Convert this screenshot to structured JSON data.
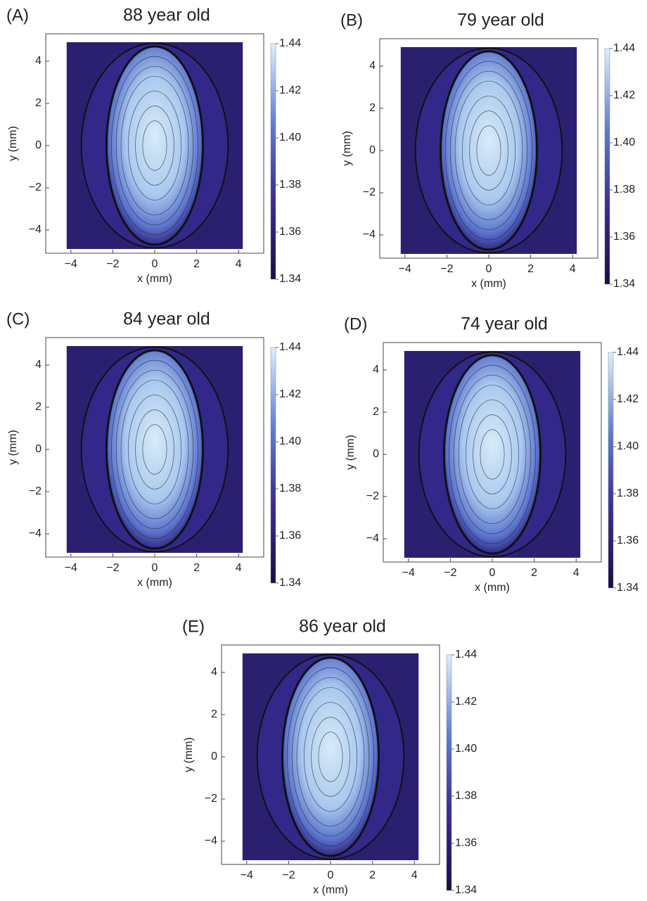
{
  "chart_data": [
    {
      "type": "contour",
      "panel": "(A)",
      "title": "88 year old",
      "xlabel": "x (mm)",
      "ylabel": "y (mm)",
      "xlim": [
        -5.2,
        5.2
      ],
      "ylim": [
        -5.1,
        5.3
      ],
      "xticks": [
        {
          "value": -4,
          "label": "−4"
        },
        {
          "value": -2,
          "label": "−2"
        },
        0,
        2,
        4
      ],
      "yticks": [
        {
          "value": -4,
          "label": "−4"
        },
        {
          "value": -2,
          "label": "−2"
        },
        0,
        2,
        4
      ],
      "clim": [
        1.34,
        1.44
      ],
      "cticks": [
        1.34,
        1.36,
        1.38,
        {
          "value": 1.4,
          "label": "1.40"
        },
        1.42,
        1.44
      ]
    },
    {
      "type": "contour",
      "panel": "(B)",
      "title": "79 year old",
      "xlabel": "x (mm)",
      "ylabel": "y (mm)",
      "xlim": [
        -5.2,
        5.2
      ],
      "ylim": [
        -5.1,
        5.3
      ],
      "xticks": [
        {
          "value": -4,
          "label": "−4"
        },
        {
          "value": -2,
          "label": "−2"
        },
        0,
        2,
        4
      ],
      "yticks": [
        {
          "value": -4,
          "label": "−4"
        },
        {
          "value": -2,
          "label": "−2"
        },
        0,
        2,
        4
      ],
      "clim": [
        1.34,
        1.44
      ],
      "cticks": [
        1.34,
        1.36,
        1.38,
        {
          "value": 1.4,
          "label": "1.40"
        },
        1.42,
        1.44
      ]
    },
    {
      "type": "contour",
      "panel": "(C)",
      "title": "84 year old",
      "xlabel": "x (mm)",
      "ylabel": "y (mm)",
      "xlim": [
        -5.2,
        5.2
      ],
      "ylim": [
        -5.1,
        5.3
      ],
      "xticks": [
        {
          "value": -4,
          "label": "−4"
        },
        {
          "value": -2,
          "label": "−2"
        },
        0,
        2,
        4
      ],
      "yticks": [
        {
          "value": -4,
          "label": "−4"
        },
        {
          "value": -2,
          "label": "−2"
        },
        0,
        2,
        4
      ],
      "clim": [
        1.34,
        1.44
      ],
      "cticks": [
        1.34,
        1.36,
        1.38,
        {
          "value": 1.4,
          "label": "1.40"
        },
        1.42,
        1.44
      ]
    },
    {
      "type": "contour",
      "panel": "(D)",
      "title": "74 year old",
      "xlabel": "x (mm)",
      "ylabel": "y (mm)",
      "xlim": [
        -5.2,
        5.2
      ],
      "ylim": [
        -5.1,
        5.3
      ],
      "xticks": [
        {
          "value": -4,
          "label": "−4"
        },
        {
          "value": -2,
          "label": "−2"
        },
        0,
        2,
        4
      ],
      "yticks": [
        {
          "value": -4,
          "label": "−4"
        },
        {
          "value": -2,
          "label": "−2"
        },
        0,
        2,
        4
      ],
      "clim": [
        1.34,
        1.44
      ],
      "cticks": [
        1.34,
        1.36,
        1.38,
        {
          "value": 1.4,
          "label": "1.40"
        },
        1.42,
        1.44
      ]
    },
    {
      "type": "contour",
      "panel": "(E)",
      "title": "86 year old",
      "xlabel": "x (mm)",
      "ylabel": "y (mm)",
      "xlim": [
        -5.2,
        5.2
      ],
      "ylim": [
        -5.1,
        5.3
      ],
      "xticks": [
        {
          "value": -4,
          "label": "−4"
        },
        {
          "value": -2,
          "label": "−2"
        },
        0,
        2,
        4
      ],
      "yticks": [
        {
          "value": -4,
          "label": "−4"
        },
        {
          "value": -2,
          "label": "−2"
        },
        0,
        2,
        4
      ],
      "clim": [
        1.34,
        1.44
      ],
      "cticks": [
        1.34,
        1.36,
        1.38,
        {
          "value": 1.4,
          "label": "1.40"
        },
        1.42,
        1.44
      ]
    }
  ]
}
